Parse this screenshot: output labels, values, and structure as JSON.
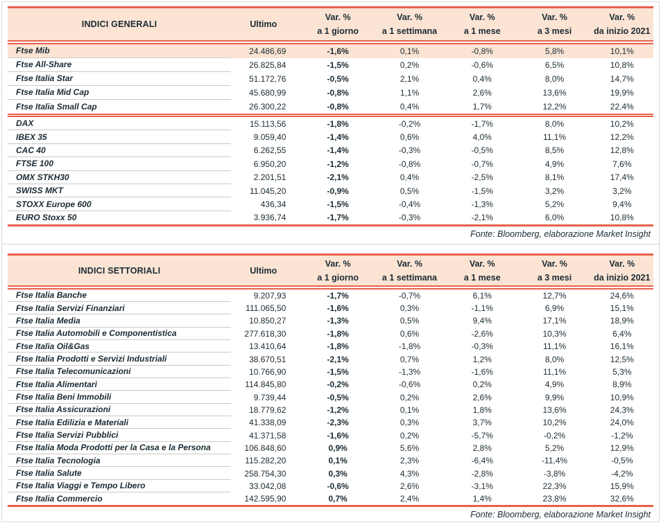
{
  "colors": {
    "accent_line": "#E8604A",
    "header_bg": "#FBE4D4",
    "highlight_row_bg": "#FBE4D4",
    "text": "#1B2A33",
    "row_divider": "#C9C9C9",
    "frame_border": "#D9D9D9"
  },
  "columns": {
    "ultimo": "Ultimo",
    "var_label": "Var. %",
    "periods": [
      "a 1 giorno",
      "a 1 settimana",
      "a 1 mese",
      "a 3 mesi",
      "da inizio 2021"
    ]
  },
  "fonte": "Fonte: Bloomberg, elaborazione Market Insight",
  "tables": [
    {
      "title": "INDICI GENERALI",
      "groups": [
        {
          "rows": [
            {
              "name": "Ftse Mib",
              "ultimo": "24.486,69",
              "d1": "-1,6%",
              "w1": "0,1%",
              "m1": "-0,8%",
              "m3": "5,8%",
              "ytd": "10,1%",
              "highlight": true
            },
            {
              "name": "Ftse All-Share",
              "ultimo": "26.825,84",
              "d1": "-1,5%",
              "w1": "0,2%",
              "m1": "-0,6%",
              "m3": "6,5%",
              "ytd": "10,8%"
            },
            {
              "name": "Ftse Italia Star",
              "ultimo": "51.172,76",
              "d1": "-0,5%",
              "w1": "2,1%",
              "m1": "0,4%",
              "m3": "8,0%",
              "ytd": "14,7%"
            },
            {
              "name": "Ftse Italia Mid Cap",
              "ultimo": "45.680,99",
              "d1": "-0,8%",
              "w1": "1,1%",
              "m1": "2,6%",
              "m3": "13,6%",
              "ytd": "19,9%"
            },
            {
              "name": "Ftse Italia Small Cap",
              "ultimo": "26.300,22",
              "d1": "-0,8%",
              "w1": "0,4%",
              "m1": "1,7%",
              "m3": "12,2%",
              "ytd": "22,4%"
            }
          ]
        },
        {
          "rows": [
            {
              "name": "DAX",
              "ultimo": "15.113,56",
              "d1": "-1,8%",
              "w1": "-0,2%",
              "m1": "-1,7%",
              "m3": "8,0%",
              "ytd": "10,2%"
            },
            {
              "name": "IBEX 35",
              "ultimo": "9.059,40",
              "d1": "-1,4%",
              "w1": "0,6%",
              "m1": "4,0%",
              "m3": "11,1%",
              "ytd": "12,2%"
            },
            {
              "name": "CAC 40",
              "ultimo": "6.262,55",
              "d1": "-1,4%",
              "w1": "-0,3%",
              "m1": "-0,5%",
              "m3": "8,5%",
              "ytd": "12,8%"
            },
            {
              "name": "FTSE 100",
              "ultimo": "6.950,20",
              "d1": "-1,2%",
              "w1": "-0,8%",
              "m1": "-0,7%",
              "m3": "4,9%",
              "ytd": "7,6%"
            },
            {
              "name": "OMX STKH30",
              "ultimo": "2.201,51",
              "d1": "-2,1%",
              "w1": "0,4%",
              "m1": "-2,5%",
              "m3": "8,1%",
              "ytd": "17,4%"
            },
            {
              "name": "SWISS MKT",
              "ultimo": "11.045,20",
              "d1": "-0,9%",
              "w1": "0,5%",
              "m1": "-1,5%",
              "m3": "3,2%",
              "ytd": "3,2%"
            },
            {
              "name": "STOXX Europe 600",
              "ultimo": "436,34",
              "d1": "-1,5%",
              "w1": "-0,4%",
              "m1": "-1,3%",
              "m3": "5,2%",
              "ytd": "9,4%"
            },
            {
              "name": "EURO Stoxx 50",
              "ultimo": "3.936,74",
              "d1": "-1,7%",
              "w1": "-0,3%",
              "m1": "-2,1%",
              "m3": "6,0%",
              "ytd": "10,8%"
            }
          ]
        }
      ]
    },
    {
      "title": "INDICI SETTORIALI",
      "groups": [
        {
          "rows": [
            {
              "name": "Ftse Italia Banche",
              "ultimo": "9.207,93",
              "d1": "-1,7%",
              "w1": "-0,7%",
              "m1": "6,1%",
              "m3": "12,7%",
              "ytd": "24,6%"
            },
            {
              "name": "Ftse Italia Servizi Finanziari",
              "ultimo": "111.065,50",
              "d1": "-1,6%",
              "w1": "0,3%",
              "m1": "-1,1%",
              "m3": "6,9%",
              "ytd": "15,1%"
            },
            {
              "name": "Ftse Italia Media",
              "ultimo": "10.850,27",
              "d1": "-1,3%",
              "w1": "0,5%",
              "m1": "9,4%",
              "m3": "17,1%",
              "ytd": "18,9%"
            },
            {
              "name": "Ftse Italia Automobili e Componentistica",
              "ultimo": "277.618,30",
              "d1": "-1,8%",
              "w1": "0,6%",
              "m1": "-2,6%",
              "m3": "10,3%",
              "ytd": "6,4%"
            },
            {
              "name": "Ftse Italia Oil&Gas",
              "ultimo": "13.410,64",
              "d1": "-1,8%",
              "w1": "-1,8%",
              "m1": "-0,3%",
              "m3": "11,1%",
              "ytd": "16,1%"
            },
            {
              "name": "Ftse Italia Prodotti e Servizi Industriali",
              "ultimo": "38.670,51",
              "d1": "-2,1%",
              "w1": "0,7%",
              "m1": "1,2%",
              "m3": "8,0%",
              "ytd": "12,5%"
            },
            {
              "name": "Ftse Italia Telecomunicazioni",
              "ultimo": "10.766,90",
              "d1": "-1,5%",
              "w1": "-1,3%",
              "m1": "-1,6%",
              "m3": "11,1%",
              "ytd": "5,3%"
            },
            {
              "name": "Ftse Italia Alimentari",
              "ultimo": "114.845,80",
              "d1": "-0,2%",
              "w1": "-0,6%",
              "m1": "0,2%",
              "m3": "4,9%",
              "ytd": "8,9%"
            },
            {
              "name": "Ftse Italia Beni Immobili",
              "ultimo": "9.739,44",
              "d1": "-0,5%",
              "w1": "0,2%",
              "m1": "2,6%",
              "m3": "9,9%",
              "ytd": "10,9%"
            },
            {
              "name": "Ftse Italia Assicurazioni",
              "ultimo": "18.779,62",
              "d1": "-1,2%",
              "w1": "0,1%",
              "m1": "1,8%",
              "m3": "13,6%",
              "ytd": "24,3%"
            },
            {
              "name": "Ftse Italia Edilizia e Materiali",
              "ultimo": "41.338,09",
              "d1": "-2,3%",
              "w1": "0,3%",
              "m1": "3,7%",
              "m3": "10,2%",
              "ytd": "24,0%"
            },
            {
              "name": "Ftse Italia Servizi Pubblici",
              "ultimo": "41.371,58",
              "d1": "-1,6%",
              "w1": "0,2%",
              "m1": "-5,7%",
              "m3": "-0,2%",
              "ytd": "-1,2%"
            },
            {
              "name": "Ftse Italia Moda Prodotti per la Casa e la Persona",
              "ultimo": "106.848,60",
              "d1": "0,9%",
              "w1": "5,6%",
              "m1": "2,8%",
              "m3": "5,2%",
              "ytd": "12,9%"
            },
            {
              "name": "Ftse Italia Tecnologia",
              "ultimo": "115.282,20",
              "d1": "0,1%",
              "w1": "2,3%",
              "m1": "-6,4%",
              "m3": "-11,4%",
              "ytd": "-0,5%"
            },
            {
              "name": "Ftse Italia Salute",
              "ultimo": "258.754,30",
              "d1": "0,3%",
              "w1": "4,3%",
              "m1": "-2,8%",
              "m3": "-3,8%",
              "ytd": "-4,2%"
            },
            {
              "name": "Ftse Italia Viaggi e Tempo Libero",
              "ultimo": "33.042,08",
              "d1": "-0,6%",
              "w1": "2,6%",
              "m1": "-3,1%",
              "m3": "22,3%",
              "ytd": "15,9%"
            },
            {
              "name": "Ftse Italia Commercio",
              "ultimo": "142.595,90",
              "d1": "0,7%",
              "w1": "2,4%",
              "m1": "1,4%",
              "m3": "23,8%",
              "ytd": "32,6%"
            }
          ]
        }
      ]
    }
  ]
}
